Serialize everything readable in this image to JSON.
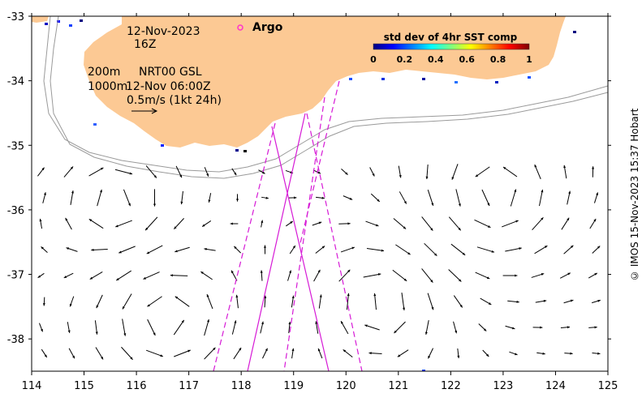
{
  "map": {
    "date_line1": "12-Nov-2023",
    "date_line2": "16Z",
    "contour_200": "200m",
    "product": "NRT00 GSL",
    "contour_1000": "1000m",
    "analysis_time": "12-Nov 06:00Z",
    "scale_label": "0.5m/s (1kt 24h)",
    "argo_label": "Argo",
    "credit": "© IMOS 15-Nov-2023 15:37 Hobart",
    "land_color": "#fcc994",
    "track_color": "#d61ad6",
    "lon_range": [
      114,
      125
    ],
    "lat_range": [
      -38.5,
      -33
    ],
    "colorbar": {
      "title": "std dev of 4hr SST comp",
      "ticks": [
        "0",
        "0.2",
        "0.4",
        "0.6",
        "0.8",
        "1"
      ],
      "range": [
        0,
        1
      ],
      "colormap": "jet"
    },
    "x_ticks": [
      "114",
      "115",
      "116",
      "117",
      "118",
      "119",
      "120",
      "121",
      "122",
      "123",
      "124",
      "125"
    ],
    "y_ticks": [
      "-33",
      "-34",
      "-35",
      "-36",
      "-37",
      "-38"
    ]
  }
}
